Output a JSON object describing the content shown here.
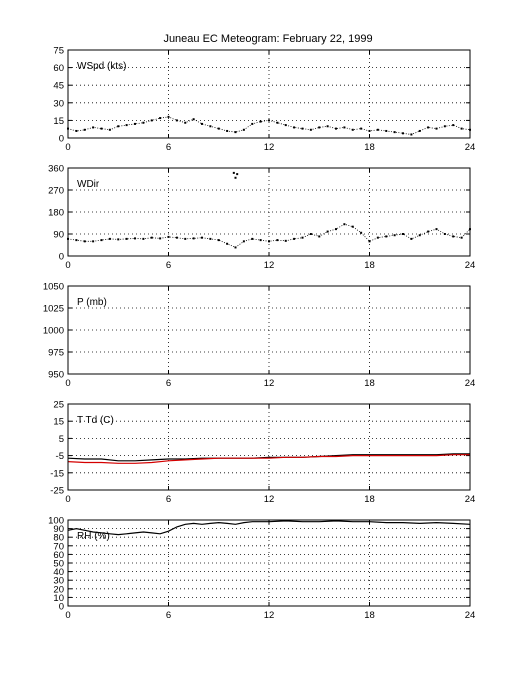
{
  "figure": {
    "title": "Juneau EC Meteogram:  February 22, 1999"
  },
  "chart_data": [
    {
      "type": "scatter",
      "title": "Juneau EC Meteogram:  February 22, 1999",
      "label": "WSpd (kts)",
      "xlabel": "",
      "ylabel": "",
      "xlim": [
        0,
        24
      ],
      "ylim": [
        0,
        75
      ],
      "x_ticks": [
        0,
        6,
        12,
        18,
        24
      ],
      "y_ticks": [
        0,
        15,
        30,
        45,
        60,
        75
      ],
      "grid": true,
      "series": [
        {
          "color": "#000000",
          "x": [
            0,
            0.5,
            1,
            1.5,
            2,
            2.5,
            3,
            3.5,
            4,
            4.5,
            5,
            5.5,
            6,
            6.5,
            7,
            7.5,
            8,
            8.5,
            9,
            9.5,
            10,
            10.5,
            11,
            11.5,
            12,
            12.5,
            13,
            13.5,
            14,
            14.5,
            15,
            15.5,
            16,
            16.5,
            17,
            17.5,
            18,
            18.5,
            19,
            19.5,
            20,
            20.5,
            21,
            21.5,
            22,
            22.5,
            23,
            23.5,
            24
          ],
          "values": [
            8,
            6,
            7,
            9,
            8,
            7,
            10,
            11,
            12,
            13,
            15,
            17,
            18,
            15,
            13,
            16,
            12,
            10,
            8,
            6,
            5,
            7,
            12,
            14,
            15,
            13,
            11,
            9,
            8,
            7,
            9,
            10,
            8,
            9,
            7,
            8,
            6,
            7,
            6,
            5,
            4,
            3,
            6,
            9,
            8,
            10,
            11,
            8,
            7
          ]
        }
      ]
    },
    {
      "type": "scatter",
      "label": "WDir",
      "xlabel": "",
      "ylabel": "",
      "xlim": [
        0,
        24
      ],
      "ylim": [
        0,
        360
      ],
      "x_ticks": [
        0,
        6,
        12,
        18,
        24
      ],
      "y_ticks": [
        0,
        90,
        180,
        270,
        360
      ],
      "grid": true,
      "series": [
        {
          "color": "#000000",
          "x": [
            0,
            0.5,
            1,
            1.5,
            2,
            2.5,
            3,
            3.5,
            4,
            4.5,
            5,
            5.5,
            6,
            6.5,
            7,
            7.5,
            8,
            8.5,
            9,
            9.5,
            10,
            10.5,
            11,
            11.5,
            12,
            12.5,
            13,
            13.5,
            14,
            14.5,
            15,
            15.5,
            16,
            16.5,
            17,
            17.5,
            18,
            18.5,
            19,
            19.5,
            20,
            20.5,
            21,
            21.5,
            22,
            22.5,
            23,
            23.5,
            24
          ],
          "values": [
            70,
            65,
            60,
            60,
            65,
            70,
            68,
            70,
            72,
            70,
            75,
            72,
            78,
            75,
            70,
            72,
            75,
            70,
            65,
            50,
            35,
            60,
            70,
            65,
            60,
            65,
            62,
            70,
            75,
            90,
            80,
            100,
            110,
            130,
            120,
            95,
            60,
            75,
            80,
            85,
            90,
            70,
            85,
            100,
            110,
            90,
            80,
            75,
            110
          ]
        },
        {
          "color": "#000000",
          "x": [
            9.9,
            10.0,
            10.1
          ],
          "values": [
            340,
            320,
            335
          ]
        }
      ]
    },
    {
      "type": "line",
      "label": "P (mb)",
      "xlabel": "",
      "ylabel": "",
      "xlim": [
        0,
        24
      ],
      "ylim": [
        950,
        1050
      ],
      "x_ticks": [
        0,
        6,
        12,
        18,
        24
      ],
      "y_ticks": [
        950,
        975,
        1000,
        1025,
        1050
      ],
      "grid": true,
      "series": []
    },
    {
      "type": "line",
      "label": "T Td (C)",
      "xlabel": "",
      "ylabel": "",
      "xlim": [
        0,
        24
      ],
      "ylim": [
        -25,
        25
      ],
      "x_ticks": [
        0,
        6,
        12,
        18,
        24
      ],
      "y_ticks": [
        -25,
        -15,
        -5,
        5,
        15,
        25
      ],
      "grid": true,
      "series": [
        {
          "color": "#000000",
          "x": [
            0,
            1,
            2,
            3,
            4,
            5,
            6,
            7,
            8,
            9,
            10,
            11,
            12,
            13,
            14,
            15,
            16,
            17,
            18,
            19,
            20,
            21,
            22,
            23,
            24
          ],
          "values": [
            -6.5,
            -7,
            -7,
            -8,
            -8,
            -7.5,
            -7,
            -7,
            -6.5,
            -6.5,
            -6.5,
            -6.5,
            -6,
            -6,
            -6,
            -5.5,
            -5,
            -4.5,
            -4.5,
            -4.5,
            -4.5,
            -4.5,
            -4.5,
            -4,
            -4
          ]
        },
        {
          "color": "#d40000",
          "x": [
            0,
            1,
            2,
            3,
            4,
            5,
            6,
            7,
            8,
            9,
            10,
            11,
            12,
            13,
            14,
            15,
            16,
            17,
            18,
            19,
            20,
            21,
            22,
            23,
            24
          ],
          "values": [
            -8.5,
            -9,
            -9,
            -9.5,
            -9.5,
            -9,
            -8,
            -7.5,
            -7,
            -6.5,
            -6.5,
            -6.5,
            -6.5,
            -6,
            -6,
            -5.5,
            -5.5,
            -5,
            -5,
            -5,
            -5,
            -5,
            -5,
            -4.5,
            -4.5
          ]
        }
      ]
    },
    {
      "type": "line",
      "label": "RH (%)",
      "xlabel": "",
      "ylabel": "",
      "xlim": [
        0,
        24
      ],
      "ylim": [
        0,
        100
      ],
      "x_ticks": [
        0,
        6,
        12,
        18,
        24
      ],
      "y_ticks": [
        0,
        10,
        20,
        30,
        40,
        50,
        60,
        70,
        80,
        90,
        100
      ],
      "grid": true,
      "series": [
        {
          "color": "#000000",
          "x": [
            0,
            0.5,
            1,
            1.5,
            2,
            2.5,
            3,
            3.5,
            4,
            4.5,
            5,
            5.5,
            6,
            6.5,
            7,
            7.5,
            8,
            8.5,
            9,
            9.5,
            10,
            10.5,
            11,
            11.5,
            12,
            13,
            14,
            15,
            16,
            17,
            18,
            19,
            20,
            21,
            22,
            23,
            24
          ],
          "values": [
            88,
            90,
            88,
            86,
            85,
            84,
            83,
            84,
            85,
            86,
            85,
            84,
            87,
            92,
            95,
            96,
            95,
            96,
            97,
            96,
            95,
            97,
            98,
            98,
            98,
            99,
            98,
            98,
            99,
            98,
            98,
            97,
            97,
            96,
            97,
            96,
            95
          ]
        }
      ]
    }
  ]
}
